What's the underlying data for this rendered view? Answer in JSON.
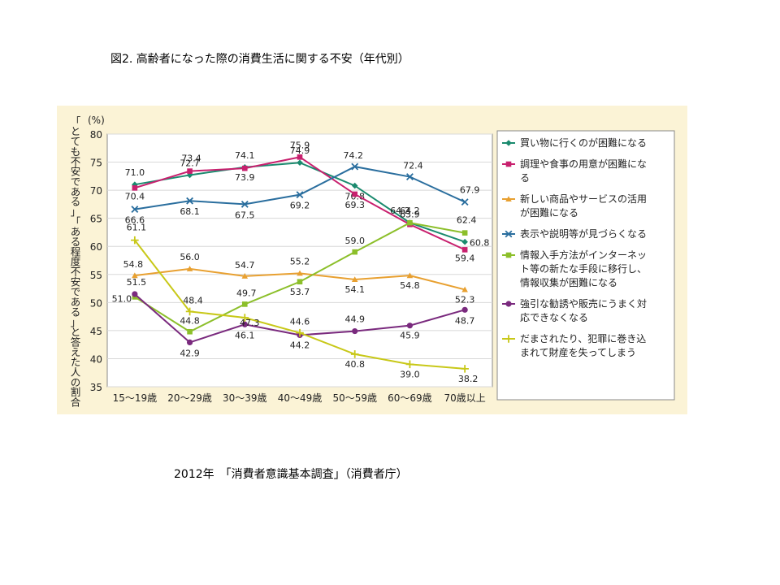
{
  "title": "図2. 高齢者になった際の消費生活に関する不安（年代別）",
  "source": "2012年　「消費者意識基本調査」（消費者庁）",
  "chart_data": {
    "type": "line",
    "ylabel_unit": "(%)",
    "ylabel": "「とても不安である」「ある程度不安である」と答えた人の割合",
    "ylim": [
      35,
      80
    ],
    "yticks": [
      35,
      40,
      45,
      50,
      55,
      60,
      65,
      70,
      75,
      80
    ],
    "grid": true,
    "legend_position": "right",
    "categories": [
      "15～19歳",
      "20～29歳",
      "30～39歳",
      "40～49歳",
      "50～59歳",
      "60～69歳",
      "70歳以上"
    ],
    "series": [
      {
        "name": "買い物に行くのが困難になる",
        "color": "#1a8a6e",
        "marker": "diamond",
        "values": [
          71.0,
          72.7,
          74.1,
          74.9,
          70.8,
          64.2,
          60.8
        ]
      },
      {
        "name": "調理や食事の用意が困難になる",
        "color": "#c8206e",
        "marker": "square",
        "values": [
          70.4,
          73.4,
          73.9,
          75.9,
          69.3,
          63.9,
          59.4
        ]
      },
      {
        "name": "新しい商品やサービスの活用が困難になる",
        "color": "#e8a030",
        "marker": "triangle",
        "values": [
          54.8,
          56.0,
          54.7,
          55.2,
          54.1,
          54.8,
          52.3
        ]
      },
      {
        "name": "表示や説明等が見づらくなる",
        "color": "#2a6e9e",
        "marker": "x",
        "values": [
          66.6,
          68.1,
          67.5,
          69.2,
          74.2,
          72.4,
          67.9
        ]
      },
      {
        "name": "情報入手方法がインターネット等の新たな手段に移行し、情報収集が困難になる",
        "color": "#8cbf2a",
        "marker": "square",
        "values": [
          51.0,
          44.8,
          49.7,
          53.7,
          59.0,
          64.2,
          62.4
        ]
      },
      {
        "name": "強引な勧誘や販売にうまく対応できなくなる",
        "color": "#7a2a7e",
        "marker": "circle",
        "values": [
          51.5,
          42.9,
          46.1,
          44.2,
          44.9,
          45.9,
          48.7
        ]
      },
      {
        "name": "だまされたり、犯罪に巻き込まれて財産を失ってしまう",
        "color": "#c8c818",
        "marker": "plus",
        "values": [
          61.1,
          48.4,
          47.3,
          44.6,
          40.8,
          39.0,
          38.2
        ]
      }
    ]
  }
}
